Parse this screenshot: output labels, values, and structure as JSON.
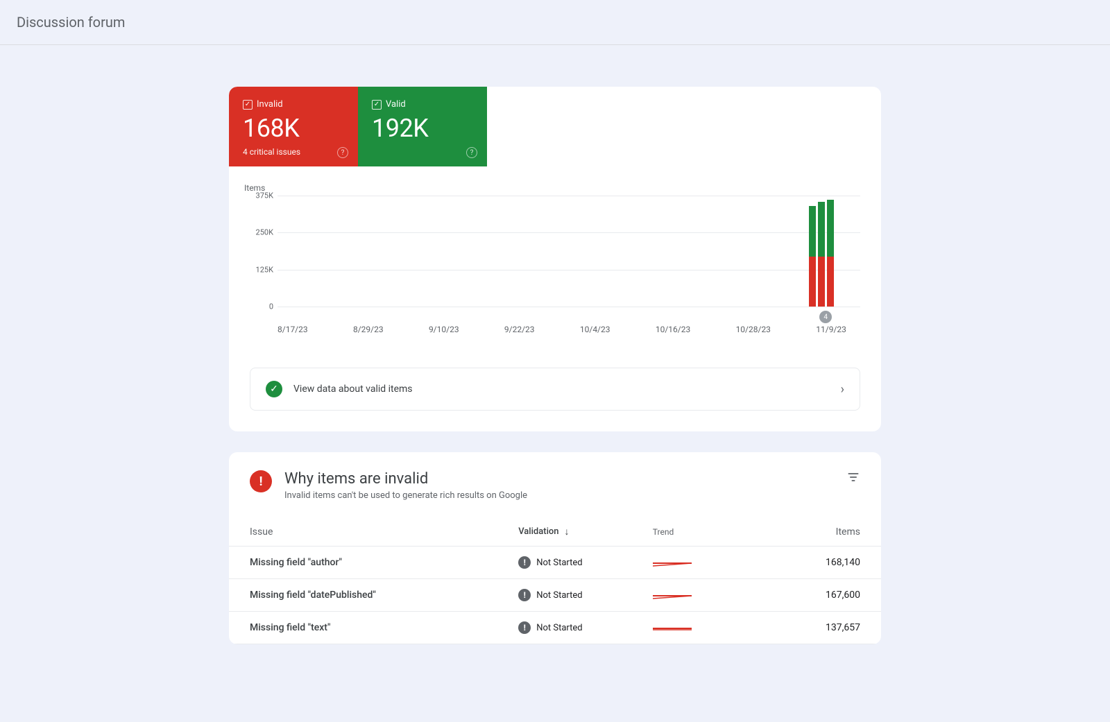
{
  "header": {
    "title": "Discussion forum"
  },
  "summary": {
    "invalid": {
      "label": "Invalid",
      "value": "168K",
      "sub": "4 critical issues"
    },
    "valid": {
      "label": "Valid",
      "value": "192K"
    }
  },
  "chart": {
    "ylabel": "Items",
    "yticks": [
      {
        "label": "375K",
        "value": 375
      },
      {
        "label": "250K",
        "value": 250
      },
      {
        "label": "125K",
        "value": 125
      },
      {
        "label": "0",
        "value": 0
      }
    ],
    "ymax": 375,
    "xticks": [
      "8/17/23",
      "8/29/23",
      "9/10/23",
      "9/22/23",
      "10/4/23",
      "10/16/23",
      "10/28/23",
      "11/9/23"
    ],
    "bars": [
      {
        "invalid": 168,
        "valid": 172
      },
      {
        "invalid": 168,
        "valid": 185
      },
      {
        "invalid": 168,
        "valid": 192
      }
    ],
    "bars_right_pct": 96,
    "badge_value": "4",
    "colors": {
      "invalid": "#d93025",
      "valid": "#1e8e3e",
      "grid": "#e8eaed",
      "axis": "#bdc1c6"
    }
  },
  "banner": {
    "text": "View data about valid items"
  },
  "issues": {
    "title": "Why items are invalid",
    "subtitle": "Invalid items can't be used to generate rich results on Google",
    "columns": {
      "issue": "Issue",
      "validation": "Validation",
      "trend": "Trend",
      "items": "Items"
    },
    "rows": [
      {
        "issue": "Missing field \"author\"",
        "validation": "Not Started",
        "items": "168,140",
        "trend_rotate": -4
      },
      {
        "issue": "Missing field \"datePublished\"",
        "validation": "Not Started",
        "items": "167,600",
        "trend_rotate": -4
      },
      {
        "issue": "Missing field \"text\"",
        "validation": "Not Started",
        "items": "137,657",
        "trend_rotate": 0
      }
    ]
  }
}
